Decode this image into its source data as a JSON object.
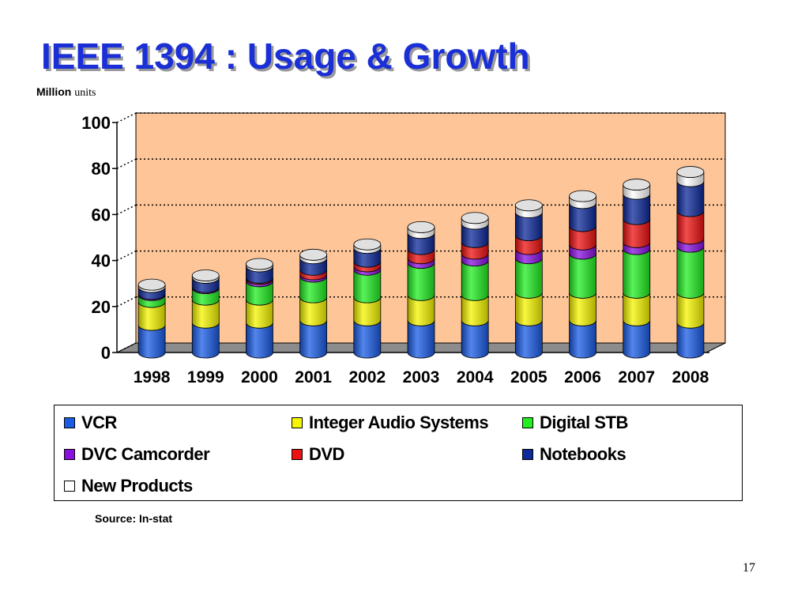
{
  "slide": {
    "title": "IEEE 1394 : Usage & Growth",
    "source": "Source: In-stat",
    "page_number": "17"
  },
  "chart_data": {
    "type": "bar",
    "stacked": true,
    "unit_label_bold": "Million",
    "unit_label_rest": "units",
    "ylim": [
      0,
      100
    ],
    "yticks": [
      0,
      20,
      40,
      60,
      80,
      100
    ],
    "grid": true,
    "legend_placement": "bottom",
    "categories": [
      "1998",
      "1999",
      "2000",
      "2001",
      "2002",
      "2003",
      "2004",
      "2005",
      "2006",
      "2007",
      "2008"
    ],
    "series": [
      {
        "name": "VCR",
        "color": "#1a5ce6",
        "values": [
          12,
          13,
          13,
          14,
          14,
          14,
          14,
          14,
          14,
          14,
          13
        ]
      },
      {
        "name": "Integer Audio Systems",
        "color": "#f5f500",
        "values": [
          10,
          10,
          10,
          10,
          10,
          11,
          11,
          12,
          12,
          12,
          13
        ]
      },
      {
        "name": "Digital STB",
        "color": "#22ee22",
        "values": [
          3,
          5,
          8,
          9,
          12,
          14,
          15,
          15,
          17,
          19,
          20
        ]
      },
      {
        "name": "DVC Camcorder",
        "color": "#8a10e0",
        "values": [
          0.5,
          0.5,
          1,
          1,
          1.5,
          2,
          3,
          4,
          4,
          3,
          3.5
        ]
      },
      {
        "name": "DVD",
        "color": "#ee1111",
        "values": [
          0,
          0,
          0.5,
          2,
          2,
          4,
          5,
          6,
          8,
          10,
          12
        ]
      },
      {
        "name": "Notebooks",
        "color": "#0e2a9a",
        "values": [
          3,
          4,
          5,
          5,
          6,
          7,
          8,
          10,
          10,
          11,
          13
        ]
      },
      {
        "name": "New Products",
        "color": "#ffffff",
        "values": [
          1,
          1,
          1,
          1.5,
          1.5,
          2.5,
          2.5,
          3,
          3,
          4,
          4
        ]
      }
    ],
    "legend_layout": [
      [
        "VCR",
        "Integer Audio Systems",
        "Digital STB"
      ],
      [
        "DVC Camcorder",
        "DVD",
        "Notebooks"
      ],
      [
        "New Products"
      ]
    ]
  }
}
